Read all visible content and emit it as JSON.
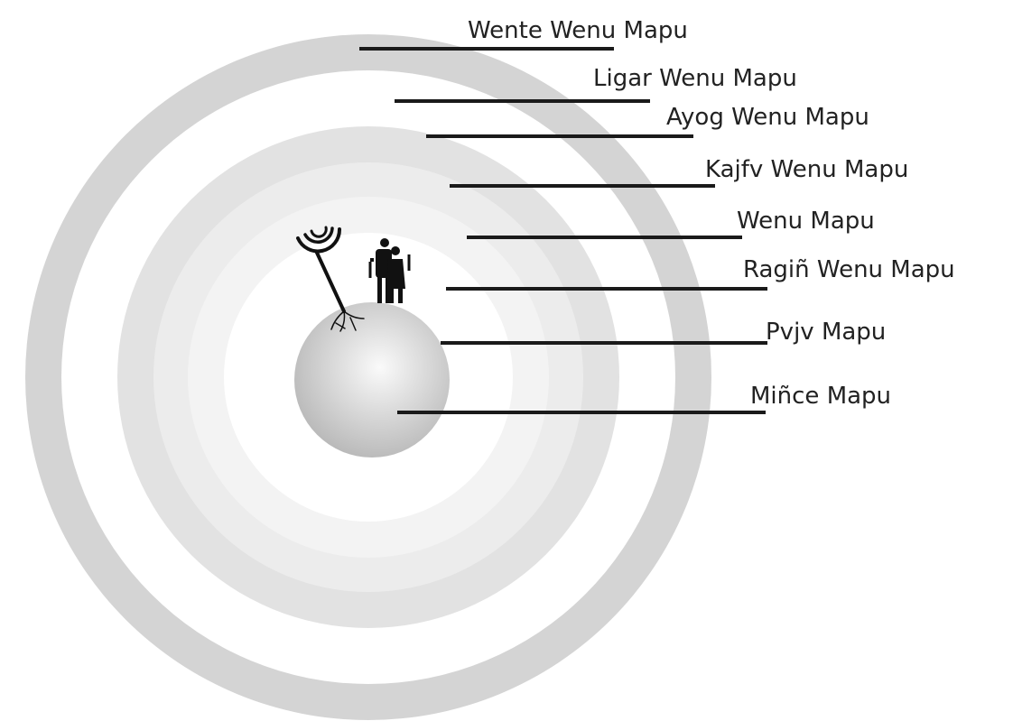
{
  "colors": {
    "outer_ring": "#d4d4d4",
    "middle_ring": "#e2e2e2",
    "inner_ring": "#ececec",
    "core_disc": "#f3f3f3",
    "earth_light": "#fafafa",
    "earth_dark": "#b9b9b9",
    "leader_line": "#1a1a1a",
    "background": "#ffffff"
  },
  "icons": {
    "totem": "rewe-totem-icon",
    "figures": "human-figures-icon",
    "earth": "earth-sphere-icon"
  },
  "layers": [
    {
      "id": "wente-wenu-mapu",
      "label": "Wente Wenu Mapu"
    },
    {
      "id": "ligar-wenu-mapu",
      "label": "Ligar Wenu Mapu"
    },
    {
      "id": "ayog-wenu-mapu",
      "label": "Ayog Wenu Mapu"
    },
    {
      "id": "kajfv-wenu-mapu",
      "label": "Kajfv Wenu Mapu"
    },
    {
      "id": "wenu-mapu",
      "label": "Wenu Mapu"
    },
    {
      "id": "ragin-wenu-mapu",
      "label": "Ragiñ Wenu  Mapu"
    },
    {
      "id": "pvjv-mapu",
      "label": "Pvjv Mapu"
    },
    {
      "id": "mince-mapu",
      "label": "Miñce Mapu"
    }
  ]
}
